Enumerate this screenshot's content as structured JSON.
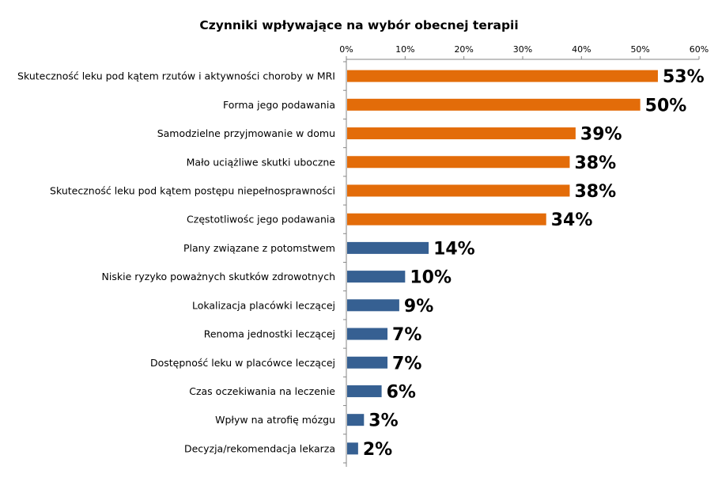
{
  "chart_data": {
    "type": "bar",
    "orientation": "horizontal",
    "title": "Czynniki wpływające na wybór obecnej terapii",
    "xlim": [
      0,
      60
    ],
    "xticks": [
      "0%",
      "10%",
      "20%",
      "30%",
      "40%",
      "50%",
      "60%"
    ],
    "tick_values": [
      0,
      10,
      20,
      30,
      40,
      50,
      60
    ],
    "axis_position": "top",
    "grid": false,
    "colors": {
      "highlight": "#E36C09",
      "default": "#366092"
    },
    "categories": [
      "Skuteczność leku pod kątem rzutów i aktywności choroby w MRI",
      "Forma jego podawania",
      "Samodzielne przyjmowanie w domu",
      "Mało uciążliwe skutki uboczne",
      "Skuteczność leku pod kątem postępu niepełnosprawności",
      "Częstotliwośc jego podawania",
      "Plany związane z potomstwem",
      "Niskie ryzyko poważnych skutków zdrowotnych",
      "Lokalizacja placówki leczącej",
      "Renoma jednostki leczącej",
      "Dostępność leku w placówce leczącej",
      "Czas oczekiwania na leczenie",
      "Wpływ na atrofię mózgu",
      "Decyzja/rekomendacja lekarza"
    ],
    "values": [
      53,
      50,
      39,
      38,
      38,
      34,
      14,
      10,
      9,
      7,
      7,
      6,
      3,
      2
    ],
    "value_labels": [
      "53%",
      "50%",
      "39%",
      "38%",
      "38%",
      "34%",
      "14%",
      "10%",
      "9%",
      "7%",
      "7%",
      "6%",
      "3%",
      "2%"
    ],
    "bar_colors": [
      "#E36C09",
      "#E36C09",
      "#E36C09",
      "#E36C09",
      "#E36C09",
      "#E36C09",
      "#366092",
      "#366092",
      "#366092",
      "#366092",
      "#366092",
      "#366092",
      "#366092",
      "#366092"
    ]
  }
}
